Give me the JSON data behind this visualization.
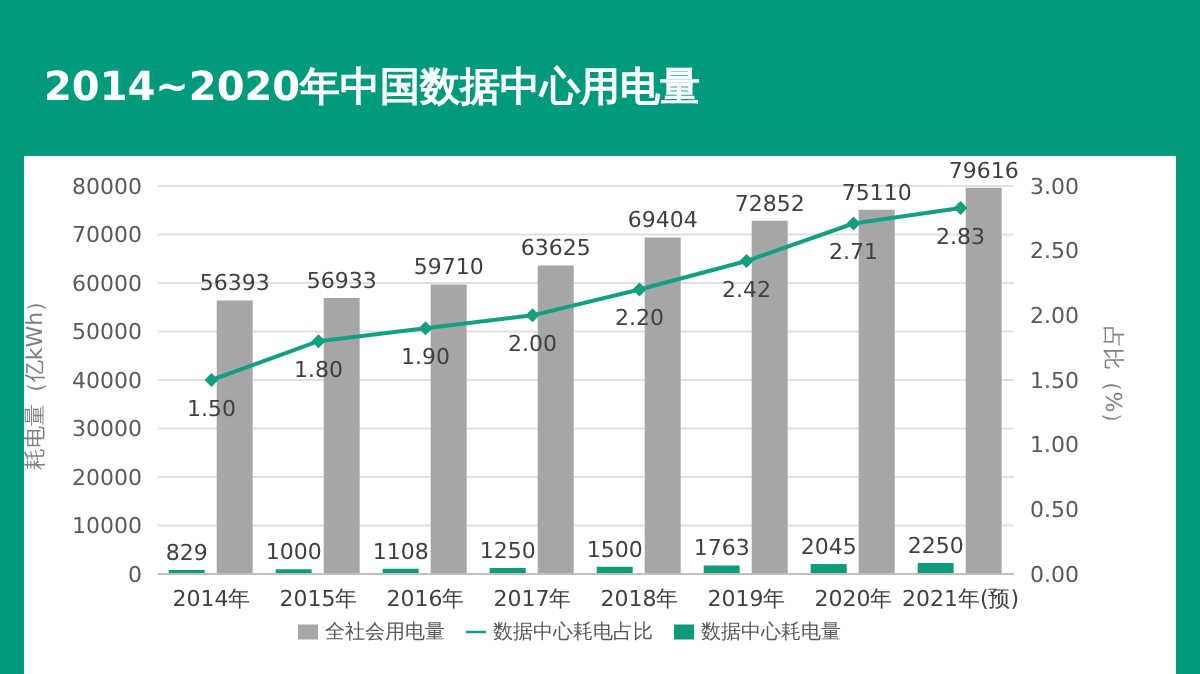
{
  "chart_data": {
    "type": "bar",
    "title": "2014~2020年中国数据中心用电量",
    "categories": [
      "2014年",
      "2015年",
      "2016年",
      "2017年",
      "2018年",
      "2019年",
      "2020年",
      "2021年(预)"
    ],
    "series": [
      {
        "name": "数据中心耗电量",
        "color": "#0e9b7a",
        "values": [
          829,
          1000,
          1108,
          1250,
          1500,
          1763,
          2045,
          2250
        ]
      },
      {
        "name": "全社会用电量",
        "color": "#a6a6a6",
        "values": [
          56393,
          56933,
          59710,
          63625,
          69404,
          72852,
          75110,
          79616
        ]
      },
      {
        "name": "数据中心耗电占比",
        "type": "line",
        "axis": "y2",
        "color": "#13a07f",
        "marker": "diamond",
        "values": [
          1.5,
          1.8,
          1.9,
          2.0,
          2.2,
          2.42,
          2.71,
          2.83
        ],
        "value_labels": [
          "1.50",
          "1.80",
          "1.90",
          "2.00",
          "2.20",
          "2.42",
          "2.71",
          "2.83"
        ]
      }
    ],
    "ylabel": "耗电量（亿kWh）",
    "y2label": "占比（%）",
    "ylim": [
      0,
      80000
    ],
    "yticks": [
      0,
      10000,
      20000,
      30000,
      40000,
      50000,
      60000,
      70000,
      80000
    ],
    "y2lim": [
      0,
      3
    ],
    "y2ticks": [
      {
        "value": 0,
        "label": "0.00"
      },
      {
        "value": 0.5,
        "label": "0.50"
      },
      {
        "value": 1,
        "label": "1.00"
      },
      {
        "value": 1.5,
        "label": "1.50"
      },
      {
        "value": 2,
        "label": "2.00"
      },
      {
        "value": 2.5,
        "label": "2.50"
      },
      {
        "value": 3,
        "label": "3.00"
      }
    ],
    "data_labels": true,
    "grid": "y",
    "legend": "bottom"
  }
}
